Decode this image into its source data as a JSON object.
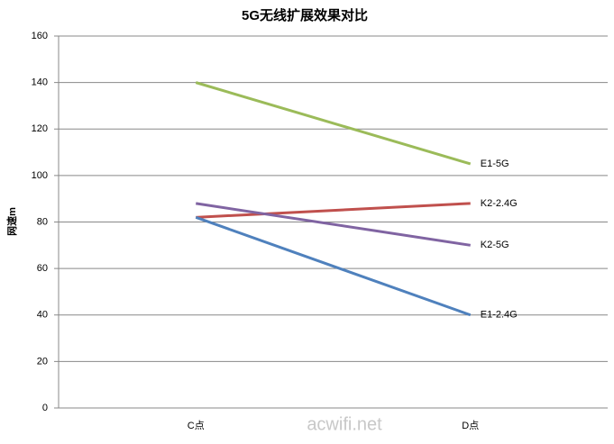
{
  "chart_data": {
    "type": "line",
    "title": "5G无线扩展效果对比",
    "y_label": "网速m",
    "categories": [
      "C点",
      "D点"
    ],
    "series": [
      {
        "name": "E1-5G",
        "color": "#9bbb59",
        "values": [
          140,
          105
        ]
      },
      {
        "name": "K2-2.4G",
        "color": "#c0504d",
        "values": [
          82,
          88
        ]
      },
      {
        "name": "K2-5G",
        "color": "#8064a2",
        "values": [
          88,
          70
        ]
      },
      {
        "name": "E1-2.4G",
        "color": "#4f81bd",
        "values": [
          82,
          40
        ]
      }
    ],
    "ylim": [
      0,
      160
    ],
    "yticks": [
      0,
      20,
      40,
      60,
      80,
      100,
      120,
      140,
      160
    ],
    "grid": true,
    "watermark": "acwifi.net"
  }
}
